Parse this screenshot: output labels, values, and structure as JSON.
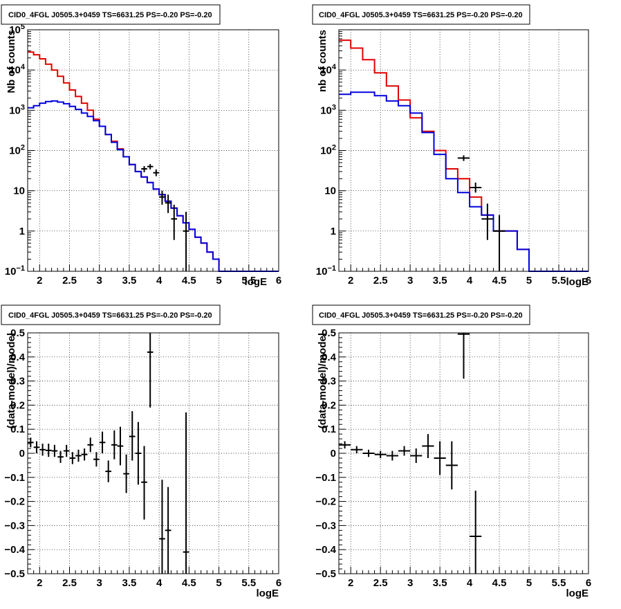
{
  "colors": {
    "data": "#000000",
    "total_model": "#e00000",
    "component_model": "#0000dd"
  },
  "chart_data": [
    {
      "type": "line",
      "title": "CID0_4FGL J0505.3+0459 TS=6631.25 PS=-0.20 PS=-0.20",
      "xlabel": "logE",
      "ylabel": "Nb of counts",
      "xlim": [
        1.8,
        6
      ],
      "ylim": [
        0.1,
        100000
      ],
      "yscale": "log",
      "grid": true,
      "xticks": [
        "2",
        "2.5",
        "3",
        "3.5",
        "4",
        "4.5",
        "5",
        "5.5",
        "6"
      ],
      "yticks": [
        "10⁻¹",
        "1",
        "10",
        "10²",
        "10³",
        "10⁴",
        "10⁵"
      ],
      "series": [
        {
          "role": "total_model",
          "edges": [
            1.8,
            1.9,
            2.0,
            2.1,
            2.2,
            2.3,
            2.4,
            2.5,
            2.6,
            2.7,
            2.8,
            2.9,
            3.0,
            3.1,
            3.2,
            3.3,
            3.4,
            3.5,
            3.6,
            3.7,
            3.8,
            3.9,
            4.0,
            4.1,
            4.2,
            4.3,
            4.4,
            4.5,
            4.6,
            4.7,
            4.8,
            4.9,
            5.0,
            5.1,
            5.2,
            5.3,
            5.4,
            5.5,
            5.6,
            5.7,
            5.8,
            5.9,
            6.0
          ],
          "values": [
            28000,
            24000,
            19000,
            14000,
            10000,
            7000,
            4800,
            3200,
            2200,
            1500,
            1000,
            600,
            400,
            250,
            170,
            110,
            70,
            45,
            30,
            22,
            16,
            11,
            8,
            5.5,
            3.7,
            2.4,
            1.6,
            1.1,
            0.7,
            0.5,
            0.3,
            0.2,
            0.1,
            0.1,
            0.1,
            0.1,
            0.1,
            0.1,
            0.1,
            0.1,
            0.1,
            0.1
          ]
        },
        {
          "role": "component_model",
          "edges": [
            1.8,
            1.9,
            2.0,
            2.1,
            2.2,
            2.3,
            2.4,
            2.5,
            2.6,
            2.7,
            2.8,
            2.9,
            3.0,
            3.1,
            3.2,
            3.3,
            3.4,
            3.5,
            3.6,
            3.7,
            3.8,
            3.9,
            4.0,
            4.1,
            4.2,
            4.3,
            4.4,
            4.5,
            4.6,
            4.7,
            4.8,
            4.9,
            5.0,
            5.1,
            5.2,
            5.3,
            5.4,
            5.5,
            5.6,
            5.7,
            5.8,
            5.9,
            6.0
          ],
          "values": [
            1150,
            1300,
            1500,
            1650,
            1700,
            1600,
            1450,
            1250,
            1050,
            850,
            700,
            550,
            400,
            250,
            160,
            105,
            70,
            45,
            30,
            22,
            16,
            11,
            8,
            5.5,
            3.7,
            2.4,
            1.6,
            1.1,
            0.7,
            0.5,
            0.3,
            0.2,
            0.1,
            0.1,
            0.1,
            0.1,
            0.1,
            0.1,
            0.1,
            0.1,
            0.1,
            0.1
          ]
        },
        {
          "role": "data",
          "points": [
            {
              "x": 3.75,
              "xerr": 0.05,
              "y": 35,
              "ylo": 29,
              "yhi": 41
            },
            {
              "x": 3.85,
              "xerr": 0.05,
              "y": 40,
              "ylo": 34,
              "yhi": 46
            },
            {
              "x": 3.95,
              "xerr": 0.05,
              "y": 28,
              "ylo": 23,
              "yhi": 34
            },
            {
              "x": 4.05,
              "xerr": 0.05,
              "y": 7,
              "ylo": 4.5,
              "yhi": 10
            },
            {
              "x": 4.15,
              "xerr": 0.05,
              "y": 5,
              "ylo": 2.8,
              "yhi": 8
            },
            {
              "x": 4.25,
              "xerr": 0.05,
              "y": 2,
              "ylo": 0.6,
              "yhi": 4.5
            },
            {
              "x": 4.45,
              "xerr": 0.05,
              "y": 1,
              "ylo": 0.1,
              "yhi": 3
            }
          ]
        }
      ]
    },
    {
      "type": "line",
      "title": "CID0_4FGL J0505.3+0459 TS=6631.25 PS=-0.20 PS=-0.20",
      "xlabel": "logE",
      "ylabel": "nb of counts",
      "xlim": [
        1.8,
        6
      ],
      "ylim": [
        0.1,
        100000
      ],
      "yscale": "log",
      "grid": true,
      "xticks": [
        "2",
        "2.5",
        "3",
        "3.5",
        "4",
        "4.5",
        "5",
        "5.5",
        "6"
      ],
      "yticks": [
        "10⁻¹",
        "1",
        "10",
        "10²",
        "10³",
        "10⁴"
      ],
      "series": [
        {
          "role": "total_model",
          "edges": [
            1.8,
            2.0,
            2.2,
            2.4,
            2.6,
            2.8,
            3.0,
            3.2,
            3.4,
            3.6,
            3.8,
            4.0,
            4.2,
            4.4,
            4.6,
            4.8,
            5.0,
            5.2,
            5.4,
            5.6,
            5.8,
            6.0
          ],
          "values": [
            55000,
            35000,
            18000,
            8500,
            4000,
            1800,
            650,
            300,
            100,
            35,
            20,
            7,
            2.5,
            1,
            1,
            0.35,
            0.1,
            0.1,
            0.1,
            0.1,
            0.1
          ]
        },
        {
          "role": "component_model",
          "edges": [
            1.8,
            2.0,
            2.2,
            2.4,
            2.6,
            2.8,
            3.0,
            3.2,
            3.4,
            3.6,
            3.8,
            4.0,
            4.2,
            4.4,
            4.6,
            4.8,
            5.0,
            5.2,
            5.4,
            5.6,
            5.8,
            6.0
          ],
          "values": [
            2500,
            2800,
            2800,
            2300,
            1700,
            1300,
            850,
            280,
            80,
            20,
            9,
            4,
            2.5,
            1,
            1,
            0.35,
            0.1,
            0.1,
            0.1,
            0.1,
            0.1
          ]
        },
        {
          "role": "data",
          "points": [
            {
              "x": 3.9,
              "xerr": 0.1,
              "y": 65,
              "ylo": 55,
              "yhi": 76
            },
            {
              "x": 4.1,
              "xerr": 0.1,
              "y": 12,
              "ylo": 9,
              "yhi": 16
            },
            {
              "x": 4.3,
              "xerr": 0.1,
              "y": 2,
              "ylo": 0.6,
              "yhi": 4.8
            },
            {
              "x": 4.5,
              "xerr": 0.1,
              "y": 1,
              "ylo": 0.1,
              "yhi": 2.5
            }
          ]
        }
      ]
    },
    {
      "type": "scatter",
      "title": "CID0_4FGL J0505.3+0459 TS=6631.25 PS=-0.20 PS=-0.20",
      "xlabel": "logE",
      "ylabel": "(data-model)/model",
      "xlim": [
        1.8,
        6
      ],
      "ylim": [
        -0.5,
        0.5
      ],
      "grid": true,
      "xticks": [
        "2",
        "2.5",
        "3",
        "3.5",
        "4",
        "4.5",
        "5",
        "5.5",
        "6"
      ],
      "yticks": [
        "−0.5",
        "−0.4",
        "−0.3",
        "−0.2",
        "−0.1",
        "0",
        "0.1",
        "0.2",
        "0.3",
        "0.4",
        "0.5"
      ],
      "points": [
        {
          "x": 1.85,
          "xerr": 0.05,
          "y": 0.045,
          "ylo": 0.025,
          "yhi": 0.065
        },
        {
          "x": 1.95,
          "xerr": 0.05,
          "y": 0.025,
          "ylo": 0.0,
          "yhi": 0.05
        },
        {
          "x": 2.05,
          "xerr": 0.05,
          "y": 0.015,
          "ylo": -0.01,
          "yhi": 0.04
        },
        {
          "x": 2.15,
          "xerr": 0.05,
          "y": 0.012,
          "ylo": -0.015,
          "yhi": 0.04
        },
        {
          "x": 2.25,
          "xerr": 0.05,
          "y": 0.01,
          "ylo": -0.015,
          "yhi": 0.035
        },
        {
          "x": 2.35,
          "xerr": 0.05,
          "y": -0.015,
          "ylo": -0.04,
          "yhi": 0.01
        },
        {
          "x": 2.45,
          "xerr": 0.05,
          "y": 0.01,
          "ylo": -0.015,
          "yhi": 0.035
        },
        {
          "x": 2.55,
          "xerr": 0.05,
          "y": -0.02,
          "ylo": -0.045,
          "yhi": 0.005
        },
        {
          "x": 2.65,
          "xerr": 0.05,
          "y": -0.01,
          "ylo": -0.035,
          "yhi": 0.015
        },
        {
          "x": 2.75,
          "xerr": 0.05,
          "y": -0.005,
          "ylo": -0.03,
          "yhi": 0.02
        },
        {
          "x": 2.85,
          "xerr": 0.05,
          "y": 0.035,
          "ylo": 0.005,
          "yhi": 0.065
        },
        {
          "x": 2.95,
          "xerr": 0.05,
          "y": -0.025,
          "ylo": -0.055,
          "yhi": 0.005
        },
        {
          "x": 3.05,
          "xerr": 0.05,
          "y": 0.045,
          "ylo": 0.0,
          "yhi": 0.09
        },
        {
          "x": 3.15,
          "xerr": 0.05,
          "y": -0.075,
          "ylo": -0.12,
          "yhi": -0.03
        },
        {
          "x": 3.25,
          "xerr": 0.05,
          "y": 0.035,
          "ylo": -0.025,
          "yhi": 0.095
        },
        {
          "x": 3.35,
          "xerr": 0.05,
          "y": 0.03,
          "ylo": -0.05,
          "yhi": 0.11
        },
        {
          "x": 3.45,
          "xerr": 0.05,
          "y": -0.085,
          "ylo": -0.165,
          "yhi": -0.005
        },
        {
          "x": 3.55,
          "xerr": 0.05,
          "y": 0.07,
          "ylo": -0.03,
          "yhi": 0.175
        },
        {
          "x": 3.65,
          "xerr": 0.05,
          "y": 0.0,
          "ylo": -0.13,
          "yhi": 0.13
        },
        {
          "x": 3.75,
          "xerr": 0.05,
          "y": -0.12,
          "ylo": -0.275,
          "yhi": 0.03
        },
        {
          "x": 3.85,
          "xerr": 0.05,
          "y": 0.42,
          "ylo": 0.19,
          "yhi": 0.5
        },
        {
          "x": 4.05,
          "xerr": 0.05,
          "y": -0.355,
          "ylo": -0.5,
          "yhi": -0.11
        },
        {
          "x": 4.15,
          "xerr": 0.05,
          "y": -0.32,
          "ylo": -0.5,
          "yhi": -0.14
        },
        {
          "x": 4.45,
          "xerr": 0.05,
          "y": -0.41,
          "ylo": -0.5,
          "yhi": 0.17
        }
      ]
    },
    {
      "type": "scatter",
      "title": "CID0_4FGL J0505.3+0459 TS=6631.25 PS=-0.20 PS=-0.20",
      "xlabel": "logE",
      "ylabel": "(data-model)/model",
      "xlim": [
        1.8,
        6
      ],
      "ylim": [
        -0.5,
        0.5
      ],
      "grid": true,
      "xticks": [
        "2",
        "2.5",
        "3",
        "3.5",
        "4",
        "4.5",
        "5",
        "5.5",
        "6"
      ],
      "yticks": [
        "−0.5",
        "−0.4",
        "−0.3",
        "−0.2",
        "−0.1",
        "0",
        "0.1",
        "0.2",
        "0.3",
        "0.4",
        "0.5"
      ],
      "points": [
        {
          "x": 1.9,
          "xerr": 0.1,
          "y": 0.035,
          "ylo": 0.02,
          "yhi": 0.05
        },
        {
          "x": 2.1,
          "xerr": 0.1,
          "y": 0.015,
          "ylo": 0.0,
          "yhi": 0.03
        },
        {
          "x": 2.3,
          "xerr": 0.1,
          "y": 0.0,
          "ylo": -0.015,
          "yhi": 0.015
        },
        {
          "x": 2.5,
          "xerr": 0.1,
          "y": -0.005,
          "ylo": -0.02,
          "yhi": 0.01
        },
        {
          "x": 2.7,
          "xerr": 0.1,
          "y": -0.01,
          "ylo": -0.03,
          "yhi": 0.01
        },
        {
          "x": 2.9,
          "xerr": 0.1,
          "y": 0.01,
          "ylo": -0.01,
          "yhi": 0.03
        },
        {
          "x": 3.1,
          "xerr": 0.1,
          "y": -0.01,
          "ylo": -0.04,
          "yhi": 0.02
        },
        {
          "x": 3.3,
          "xerr": 0.1,
          "y": 0.03,
          "ylo": -0.02,
          "yhi": 0.08
        },
        {
          "x": 3.5,
          "xerr": 0.1,
          "y": -0.02,
          "ylo": -0.09,
          "yhi": 0.05
        },
        {
          "x": 3.7,
          "xerr": 0.1,
          "y": -0.05,
          "ylo": -0.15,
          "yhi": 0.05
        },
        {
          "x": 3.9,
          "xerr": 0.1,
          "y": 0.495,
          "ylo": 0.31,
          "yhi": 0.5
        },
        {
          "x": 4.1,
          "xerr": 0.1,
          "y": -0.345,
          "ylo": -0.5,
          "yhi": -0.155
        }
      ]
    }
  ]
}
